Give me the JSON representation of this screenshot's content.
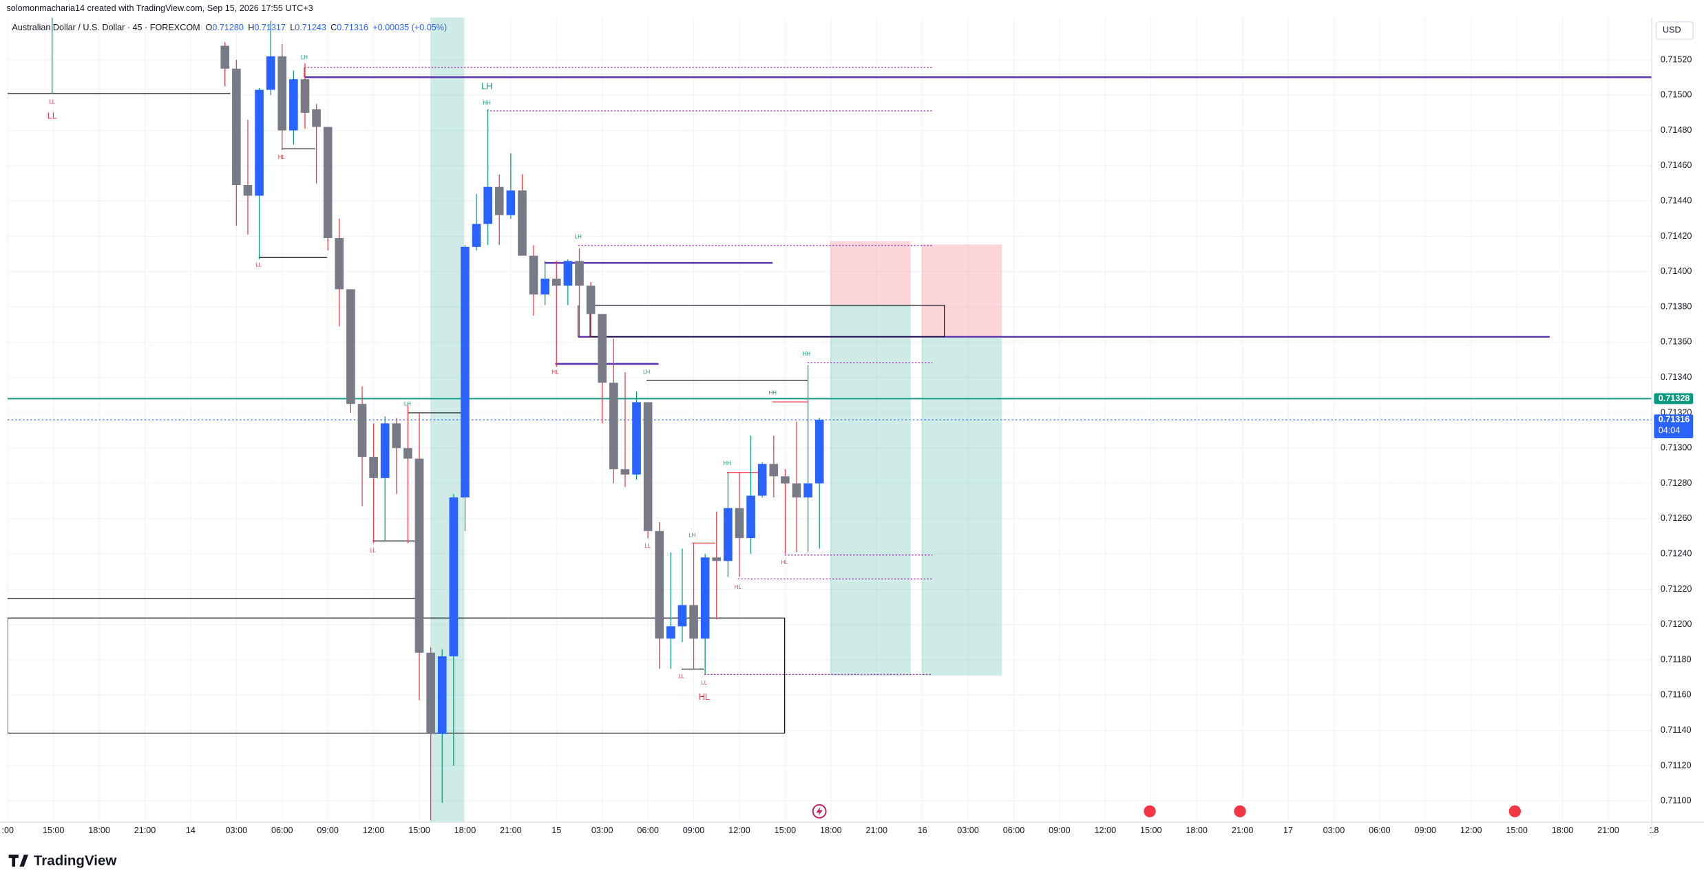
{
  "header": "solomonmacharia14 created with TradingView.com, Sep 15, 2026 17:55 UTC+3",
  "legend": {
    "symbol": "Australian Dollar / U.S. Dollar · 45 · FOREXCOM",
    "items": [
      {
        "label": "O",
        "value": "0.71280"
      },
      {
        "label": "H",
        "value": "0.71317"
      },
      {
        "label": "L",
        "value": "0.71243"
      },
      {
        "label": "C",
        "value": "0.71316"
      }
    ],
    "change": "+0.00035 (+0.05%)"
  },
  "currency": "USD",
  "brand": "TradingView",
  "chart_data": {
    "type": "candlestick",
    "up_color": "#2962ff",
    "down_color": "#787b86",
    "grid": true,
    "x_labels": [
      ":00",
      "15:00",
      "18:00",
      "21:00",
      "14",
      "03:00",
      "06:00",
      "09:00",
      "12:00",
      "15:00",
      "18:00",
      "21:00",
      "15",
      "03:00",
      "06:00",
      "09:00",
      "12:00",
      "15:00",
      "18:00",
      "21:00",
      "16",
      "03:00",
      "06:00",
      "09:00",
      "12:00",
      "15:00",
      "18:00",
      "21:00",
      "17",
      "03:00",
      "06:00",
      "09:00",
      "12:00",
      "15:00",
      "18:00",
      "21:00",
      "18"
    ],
    "open": [
      0.71528,
      0.71515,
      0.71449,
      0.71443,
      0.71503,
      0.71522,
      0.7148,
      0.71509,
      0.71492,
      0.71482,
      0.71419,
      0.7139,
      0.71325,
      0.71295,
      0.71283,
      0.71314,
      0.713,
      0.71294,
      0.71184,
      0.71138,
      0.71182,
      0.71272,
      0.71414,
      0.71427,
      0.71448,
      0.71432,
      0.71446,
      0.71409,
      0.71387,
      0.71396,
      0.71392,
      0.71406,
      0.71392,
      0.71376,
      0.71337,
      0.71288,
      0.71285,
      0.71326,
      0.71253,
      0.71192,
      0.71199,
      0.71211,
      0.71192,
      0.71238,
      0.71236,
      0.71266,
      0.71249,
      0.71273,
      0.71291,
      0.71284,
      0.7128,
      0.71272,
      0.7128
    ],
    "high": [
      0.7153,
      0.7152,
      0.71486,
      0.71504,
      0.71542,
      0.71529,
      0.71514,
      0.71518,
      0.71495,
      0.71482,
      0.7143,
      0.7139,
      0.71335,
      0.71314,
      0.71318,
      0.71317,
      0.71325,
      0.7132,
      0.71187,
      0.71186,
      0.71274,
      0.71415,
      0.71444,
      0.71492,
      0.71455,
      0.71467,
      0.71455,
      0.71415,
      0.71406,
      0.71406,
      0.71407,
      0.71413,
      0.71394,
      0.71376,
      0.71362,
      0.71343,
      0.71332,
      0.71326,
      0.71258,
      0.71241,
      0.71243,
      0.71246,
      0.7124,
      0.71264,
      0.71286,
      0.71286,
      0.71307,
      0.71292,
      0.71307,
      0.71288,
      0.71315,
      0.71347,
      0.71317
    ],
    "low": [
      0.71505,
      0.71426,
      0.71421,
      0.71407,
      0.715,
      0.71469,
      0.71472,
      0.71481,
      0.7145,
      0.71412,
      0.71369,
      0.7132,
      0.71267,
      0.71246,
      0.71247,
      0.71274,
      0.71246,
      0.71157,
      0.71089,
      0.71099,
      0.7112,
      0.71253,
      0.71412,
      0.71415,
      0.71415,
      0.7143,
      0.71409,
      0.71375,
      0.71381,
      0.71346,
      0.71381,
      0.71363,
      0.71363,
      0.71314,
      0.7128,
      0.71278,
      0.71282,
      0.71249,
      0.71175,
      0.71175,
      0.7119,
      0.71175,
      0.71172,
      0.71203,
      0.71227,
      0.71227,
      0.7124,
      0.71272,
      0.71272,
      0.7124,
      0.71241,
      0.71241,
      0.71243
    ],
    "close": [
      0.71515,
      0.71449,
      0.71443,
      0.71503,
      0.71522,
      0.7148,
      0.71509,
      0.7149,
      0.71482,
      0.71419,
      0.7139,
      0.71325,
      0.71295,
      0.71283,
      0.71314,
      0.713,
      0.71294,
      0.71184,
      0.71138,
      0.71182,
      0.71272,
      0.71414,
      0.71427,
      0.71448,
      0.71432,
      0.71446,
      0.71409,
      0.71387,
      0.71396,
      0.71392,
      0.71406,
      0.71392,
      0.71376,
      0.71337,
      0.71288,
      0.71285,
      0.71326,
      0.71253,
      0.71192,
      0.71199,
      0.71211,
      0.71192,
      0.71238,
      0.71236,
      0.71266,
      0.71249,
      0.71273,
      0.71291,
      0.71284,
      0.7128,
      0.71272,
      0.7128,
      0.71316
    ],
    "ylim": [
      0.71088,
      0.71544
    ],
    "yticks": [
      {
        "value": 0.711,
        "label": "0.71100"
      },
      {
        "value": 0.7112,
        "label": "0.71120"
      },
      {
        "value": 0.7114,
        "label": "0.71140"
      },
      {
        "value": 0.7116,
        "label": "0.71160"
      },
      {
        "value": 0.7118,
        "label": "0.71180"
      },
      {
        "value": 0.712,
        "label": "0.71200"
      },
      {
        "value": 0.7122,
        "label": "0.71220"
      },
      {
        "value": 0.7124,
        "label": "0.71240"
      },
      {
        "value": 0.7126,
        "label": "0.71260"
      },
      {
        "value": 0.7128,
        "label": "0.71280"
      },
      {
        "value": 0.713,
        "label": "0.71300"
      },
      {
        "value": 0.7132,
        "label": "0.71320"
      },
      {
        "value": 0.7134,
        "label": "0.71340"
      },
      {
        "value": 0.7136,
        "label": "0.71360"
      },
      {
        "value": 0.7138,
        "label": "0.71380"
      },
      {
        "value": 0.714,
        "label": "0.71400"
      },
      {
        "value": 0.7142,
        "label": "0.71420"
      },
      {
        "value": 0.7144,
        "label": "0.71440"
      },
      {
        "value": 0.7146,
        "label": "0.71460"
      },
      {
        "value": 0.7148,
        "label": "0.71480"
      },
      {
        "value": 0.715,
        "label": "0.71500"
      },
      {
        "value": 0.7152,
        "label": "0.71520"
      }
    ],
    "price_lines": [
      {
        "value": 0.71328,
        "label": "0.71328",
        "color": "#089981"
      },
      {
        "value": 0.71316,
        "label": "0.71316",
        "countdown": "04:04",
        "color": "#2962ff"
      }
    ],
    "annotations": [
      {
        "text": "LL",
        "color": "#f23645"
      },
      {
        "text": "LL",
        "color": "#f23645"
      },
      {
        "text": "LH",
        "color": "#089981"
      },
      {
        "text": "LH",
        "color": "#089981"
      },
      {
        "text": "HH",
        "color": "#089981"
      },
      {
        "text": "HL",
        "color": "#f23645"
      },
      {
        "text": "LL",
        "color": "#f23645"
      },
      {
        "text": "LH",
        "color": "#089981"
      },
      {
        "text": "HL",
        "color": "#f23645"
      },
      {
        "text": "LH",
        "color": "#089981"
      },
      {
        "text": "LL",
        "color": "#f23645"
      },
      {
        "text": "LH",
        "color": "#089981"
      },
      {
        "text": "HH",
        "color": "#089981"
      },
      {
        "text": "HH",
        "color": "#089981"
      },
      {
        "text": "HH",
        "color": "#089981"
      },
      {
        "text": "LH",
        "color": "#089981"
      },
      {
        "text": "HL",
        "color": "#f23645"
      },
      {
        "text": "HL",
        "color": "#f23645"
      },
      {
        "text": "LL",
        "color": "#f23645"
      },
      {
        "text": "LL",
        "color": "#f23645"
      },
      {
        "text": "HL",
        "color": "#f23645"
      },
      {
        "text": "LL",
        "color": "#f23645"
      }
    ]
  }
}
